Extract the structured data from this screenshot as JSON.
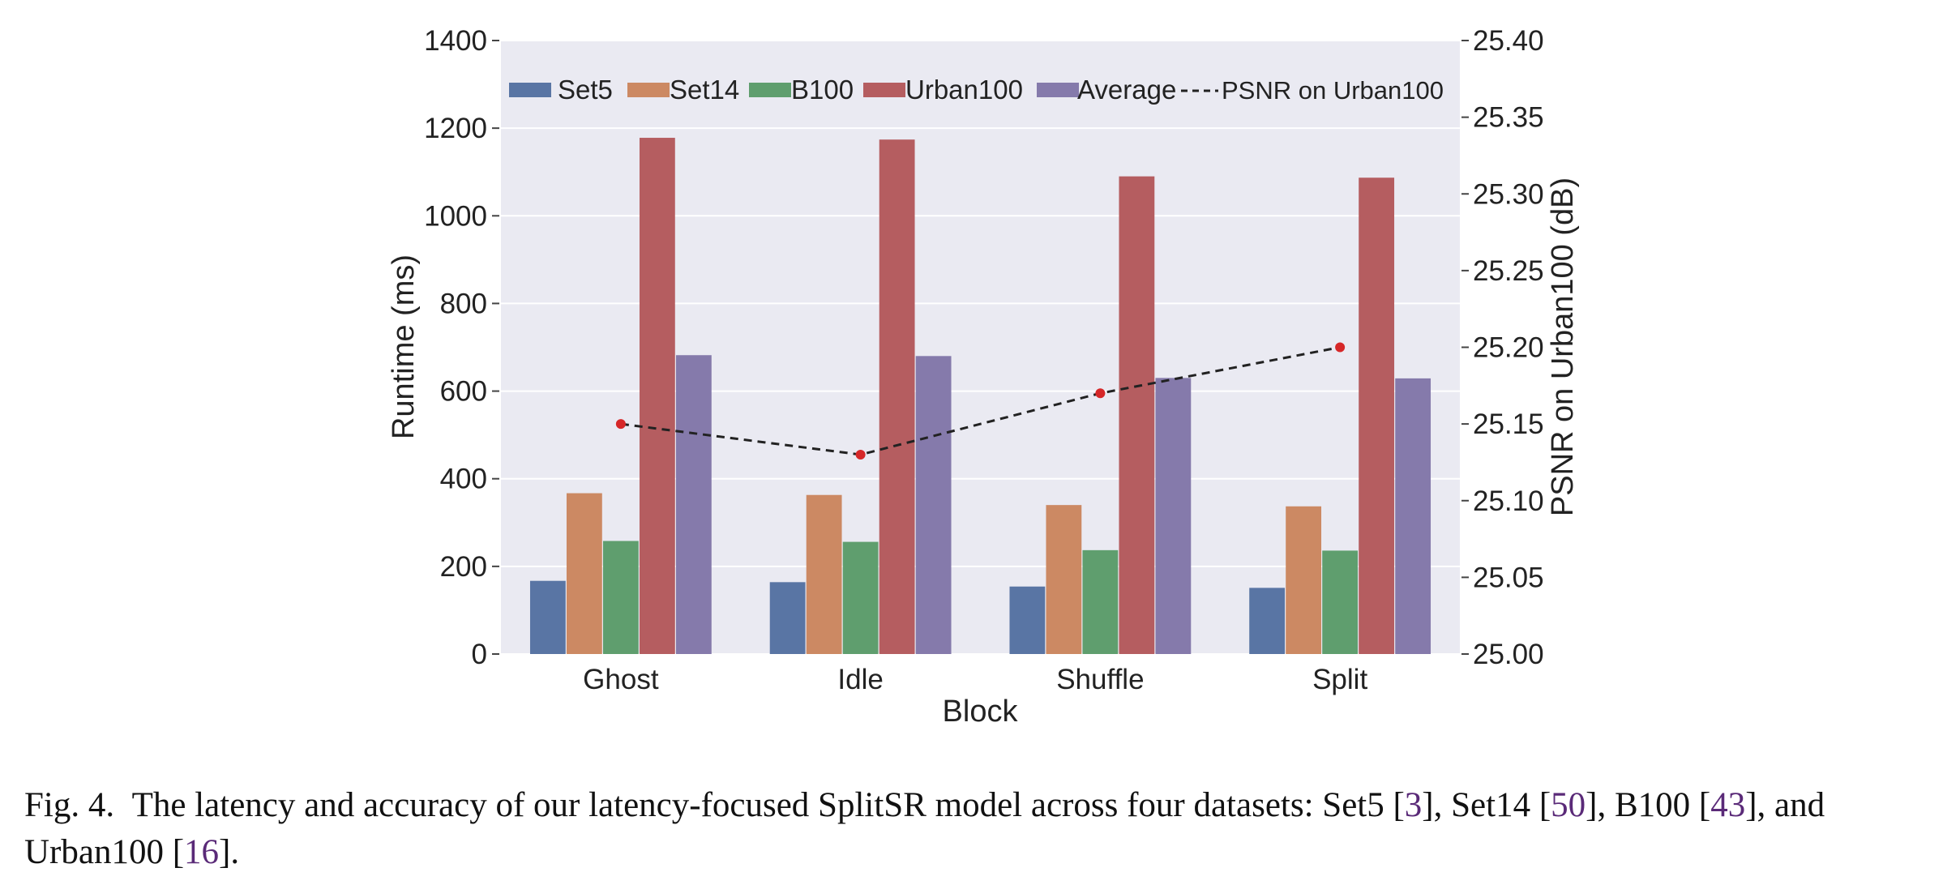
{
  "chart_data": {
    "type": "bar",
    "categories": [
      "Ghost",
      "Idle",
      "Shuffle",
      "Split"
    ],
    "series": [
      {
        "name": "Set5",
        "values": [
          167,
          164,
          154,
          151
        ],
        "color": "#5975a4"
      },
      {
        "name": "Set14",
        "values": [
          367,
          363,
          340,
          337
        ],
        "color": "#cc8963"
      },
      {
        "name": "B100",
        "values": [
          258,
          256,
          237,
          236
        ],
        "color": "#5f9e6e"
      },
      {
        "name": "Urban100",
        "values": [
          1178,
          1174,
          1090,
          1087
        ],
        "color": "#b55d60"
      },
      {
        "name": "Average",
        "values": [
          682,
          680,
          630,
          629
        ],
        "color": "#857aab"
      }
    ],
    "line_series": {
      "name": "PSNR on Urban100",
      "values": [
        25.15,
        25.13,
        25.17,
        25.2
      ],
      "color": "#222222",
      "marker_color": "#d62728",
      "style": "dashed"
    },
    "xlabel": "Block",
    "ylabel": "Runtime (ms)",
    "y2label": "PSNR on Urban100 (dB)",
    "ylim": [
      0,
      1400
    ],
    "y2lim": [
      25.0,
      25.4
    ],
    "yticks": [
      "0",
      "200",
      "400",
      "600",
      "800",
      "1000",
      "1200",
      "1400"
    ],
    "y2ticks": [
      "25.00",
      "25.05",
      "25.10",
      "25.15",
      "25.20",
      "25.25",
      "25.30",
      "25.35",
      "25.40"
    ],
    "legend": "top",
    "grid": true,
    "background": "#eaeaf2"
  },
  "caption": {
    "label": "Fig. 4.",
    "text_a": "The latency and accuracy of our latency-focused SplitSR model across four datasets: Set5 [",
    "ref_a": "3",
    "text_b": "], Set14 [",
    "ref_b": "50",
    "text_c": "], B100 [",
    "ref_c": "43",
    "text_d": "], and Urban100 [",
    "ref_d": "16",
    "text_e": "]."
  }
}
